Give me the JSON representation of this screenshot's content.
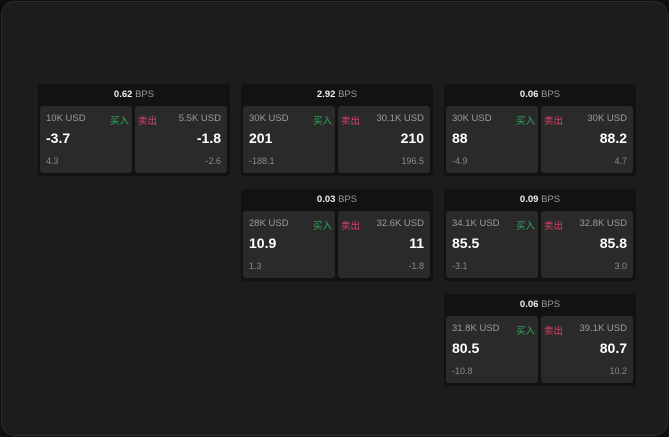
{
  "unit": "BPS",
  "buy_label": "买入",
  "sell_label": "卖出",
  "cards": [
    {
      "bps": "0.62",
      "buy": {
        "size": "10K USD",
        "price": "-3.7",
        "change": "4.3"
      },
      "sell": {
        "size": "5.5K USD",
        "price": "-1.8",
        "change": "-2.6"
      }
    },
    {
      "bps": "2.92",
      "buy": {
        "size": "30K USD",
        "price": "201",
        "change": "-188.1"
      },
      "sell": {
        "size": "30.1K USD",
        "price": "210",
        "change": "196.5"
      }
    },
    {
      "bps": "0.06",
      "buy": {
        "size": "30K USD",
        "price": "88",
        "change": "-4.9"
      },
      "sell": {
        "size": "30K USD",
        "price": "88.2",
        "change": "4.7"
      }
    },
    {
      "bps": "0.03",
      "buy": {
        "size": "28K USD",
        "price": "10.9",
        "change": "1.3"
      },
      "sell": {
        "size": "32.6K USD",
        "price": "11",
        "change": "-1.8"
      }
    },
    {
      "bps": "0.09",
      "buy": {
        "size": "34.1K USD",
        "price": "85.5",
        "change": "-3.1"
      },
      "sell": {
        "size": "32.8K USD",
        "price": "85.8",
        "change": "3.0"
      }
    },
    {
      "bps": "0.06",
      "buy": {
        "size": "31.8K USD",
        "price": "80.5",
        "change": "-10.8"
      },
      "sell": {
        "size": "39.1K USD",
        "price": "80.7",
        "change": "10.2"
      }
    }
  ]
}
